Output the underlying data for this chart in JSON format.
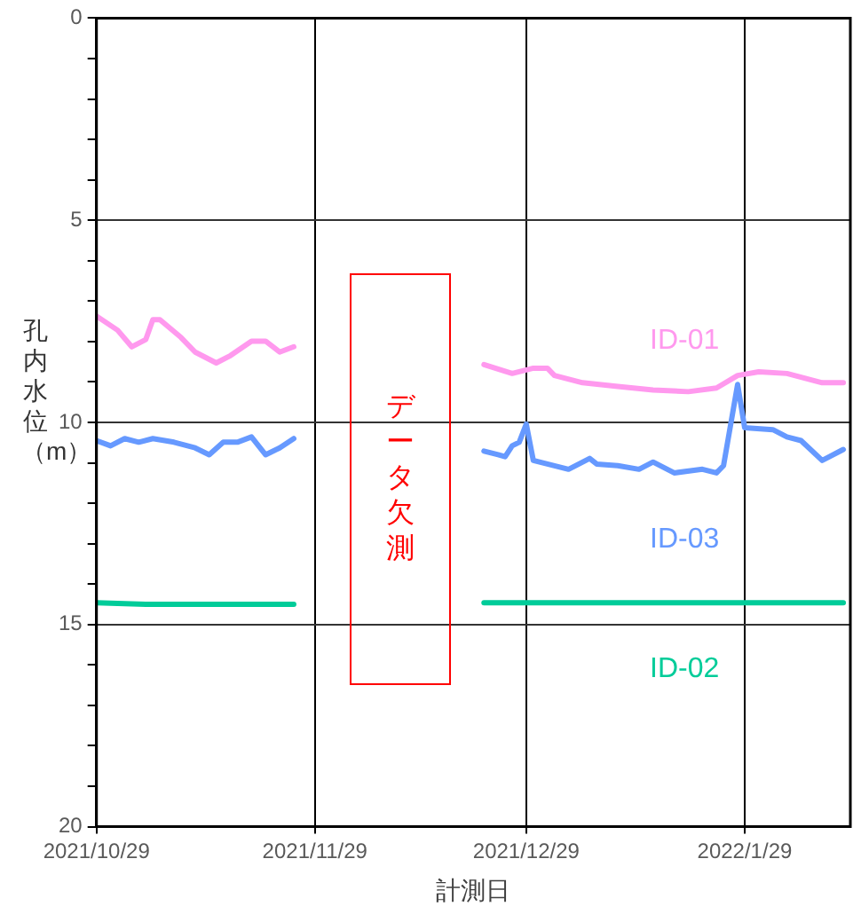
{
  "chart_data": {
    "type": "line",
    "xlabel": "計測日",
    "ylabel": "孔内水位（m）",
    "xlim": [
      "2021-10-29",
      "2022-02-13"
    ],
    "xticks": [
      {
        "value": "2021-10-29",
        "label": "2021/10/29"
      },
      {
        "value": "2021-11-29",
        "label": "2021/11/29"
      },
      {
        "value": "2021-12-29",
        "label": "2021/12/29"
      },
      {
        "value": "2022-01-29",
        "label": "2022/1/29"
      }
    ],
    "ylim": [
      20,
      0
    ],
    "yticks": [
      0,
      {
        "value": 1,
        "label": null
      },
      {
        "value": 2,
        "label": null
      },
      {
        "value": 3,
        "label": null
      },
      {
        "value": 4,
        "label": null
      },
      5,
      {
        "value": 6,
        "label": null
      },
      {
        "value": 7,
        "label": null
      },
      {
        "value": 8,
        "label": null
      },
      {
        "value": 9,
        "label": null
      },
      10,
      {
        "value": 11,
        "label": null
      },
      {
        "value": 12,
        "label": null
      },
      {
        "value": 13,
        "label": null
      },
      {
        "value": 14,
        "label": null
      },
      15,
      {
        "value": 16,
        "label": null
      },
      {
        "value": 17,
        "label": null
      },
      {
        "value": 18,
        "label": null
      },
      {
        "value": 19,
        "label": null
      },
      20
    ],
    "grid": true,
    "legend": false,
    "marker": "none",
    "line_style": "solid",
    "annotations": [
      "データ欠測"
    ],
    "series": [
      {
        "name": "ID-01",
        "color": "#ff99ee",
        "x": [
          "2021-10-29",
          "2021-11-01",
          "2021-11-03",
          "2021-11-05",
          "2021-11-06",
          "2021-11-07",
          "2021-11-10",
          "2021-11-12",
          "2021-11-15",
          "2021-11-17",
          "2021-11-20",
          "2021-11-22",
          "2021-11-24",
          "2021-11-26",
          "2021-12-10",
          "2021-12-23",
          "2021-12-27",
          "2021-12-30",
          "2022-01-01",
          "2022-01-02",
          "2022-01-06",
          "2022-01-11",
          "2022-01-16",
          "2022-01-21",
          "2022-01-25",
          "2022-01-28",
          "2022-01-31",
          "2022-02-04",
          "2022-02-09",
          "2022-02-12"
        ],
        "values": [
          7.37,
          7.72,
          8.13,
          7.95,
          7.46,
          7.46,
          7.9,
          8.26,
          8.53,
          8.35,
          7.99,
          7.99,
          8.26,
          8.13,
          null,
          8.57,
          8.79,
          8.66,
          8.66,
          8.84,
          9.02,
          9.11,
          9.2,
          9.24,
          9.15,
          8.84,
          8.75,
          8.79,
          9.02,
          9.02
        ]
      },
      {
        "name": "ID-02",
        "color": "#00cc99",
        "x": [
          "2021-10-29",
          "2021-11-05",
          "2021-11-26",
          "2021-12-10",
          "2021-12-23",
          "2022-02-12"
        ],
        "values": [
          14.46,
          14.5,
          14.5,
          null,
          14.46,
          14.46
        ]
      },
      {
        "name": "ID-03",
        "color": "#6699ff",
        "x": [
          "2021-10-29",
          "2021-10-31",
          "2021-11-02",
          "2021-11-04",
          "2021-11-06",
          "2021-11-09",
          "2021-11-12",
          "2021-11-14",
          "2021-11-16",
          "2021-11-18",
          "2021-11-20",
          "2021-11-22",
          "2021-11-24",
          "2021-11-26",
          "2021-12-10",
          "2021-12-23",
          "2021-12-25",
          "2021-12-26",
          "2021-12-27",
          "2021-12-28",
          "2021-12-29",
          "2021-12-30",
          "2022-01-01",
          "2022-01-04",
          "2022-01-07",
          "2022-01-08",
          "2022-01-11",
          "2022-01-14",
          "2022-01-16",
          "2022-01-19",
          "2022-01-23",
          "2022-01-25",
          "2022-01-26",
          "2022-01-28",
          "2022-01-29",
          "2022-02-02",
          "2022-02-04",
          "2022-02-06",
          "2022-02-09",
          "2022-02-12"
        ],
        "values": [
          10.45,
          10.58,
          10.4,
          10.49,
          10.4,
          10.49,
          10.63,
          10.8,
          10.49,
          10.49,
          10.36,
          10.8,
          10.63,
          10.4,
          null,
          10.71,
          10.8,
          10.85,
          10.58,
          10.49,
          10.04,
          10.94,
          11.03,
          11.16,
          10.89,
          11.03,
          11.07,
          11.16,
          10.98,
          11.25,
          11.16,
          11.25,
          11.07,
          9.06,
          10.13,
          10.18,
          10.36,
          10.45,
          10.94,
          10.67
        ]
      }
    ]
  }
}
